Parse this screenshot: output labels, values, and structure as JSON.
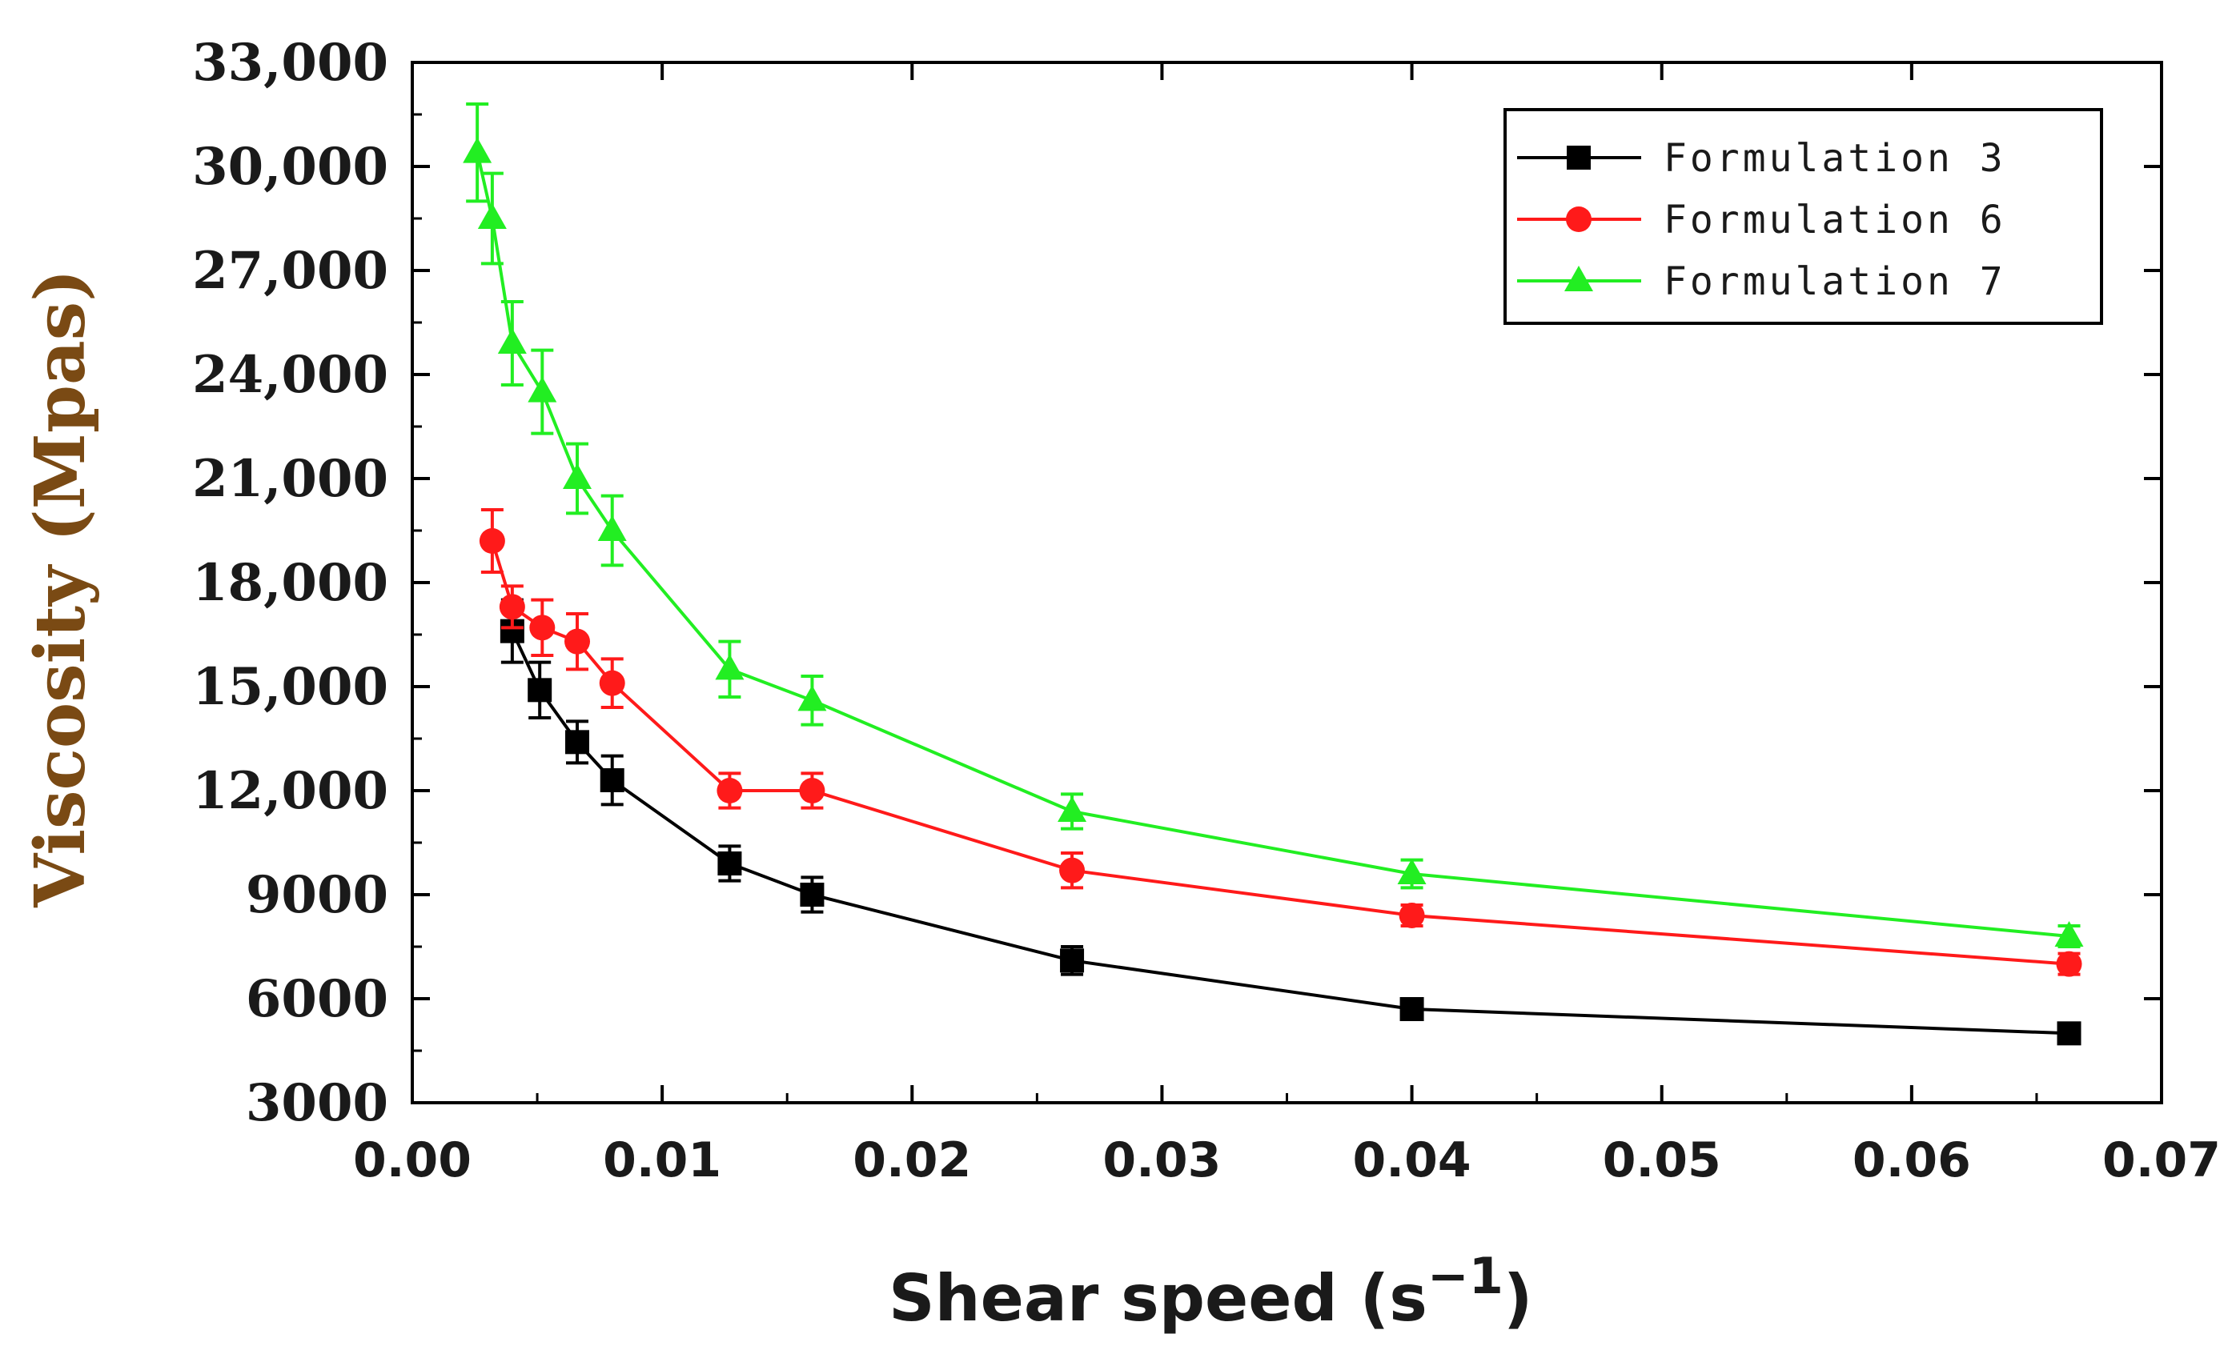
{
  "chart_data": {
    "type": "line",
    "title": "",
    "xlabel": "Shear speed (s",
    "xlabel_superscript": "−1",
    "xlabel_close": ")",
    "ylabel": "Viscosity (Mpas)",
    "xlim": [
      0.0,
      0.07
    ],
    "ylim": [
      3000,
      33000
    ],
    "x_ticks": [
      0.0,
      0.01,
      0.02,
      0.03,
      0.04,
      0.05,
      0.06,
      0.07
    ],
    "x_tick_labels": [
      "0.00",
      "0.01",
      "0.02",
      "0.03",
      "0.04",
      "0.05",
      "0.06",
      "0.07"
    ],
    "y_ticks": [
      3000,
      6000,
      9000,
      12000,
      15000,
      18000,
      21000,
      24000,
      27000,
      30000,
      33000
    ],
    "y_tick_labels": [
      "3000",
      "6000",
      "9000",
      "12,000",
      "15,000",
      "18,000",
      "21,000",
      "24,000",
      "27,000",
      "30,000",
      "33,000"
    ],
    "grid": false,
    "legend_position": "top-right",
    "series": [
      {
        "name": "Formulation 3",
        "color": "#000000",
        "marker": "square",
        "x": [
          0.004,
          0.0051,
          0.0066,
          0.008,
          0.0127,
          0.016,
          0.0264,
          0.04,
          0.0663
        ],
        "y": [
          16600,
          14900,
          13400,
          12300,
          9900,
          9000,
          7100,
          5700,
          5000
        ],
        "err": [
          900,
          800,
          600,
          700,
          500,
          500,
          400,
          200,
          150
        ]
      },
      {
        "name": "Formulation 6",
        "color": "#ff1a1a",
        "marker": "circle",
        "x": [
          0.0032,
          0.004,
          0.0052,
          0.0066,
          0.008,
          0.0127,
          0.016,
          0.0264,
          0.04,
          0.0663
        ],
        "y": [
          19200,
          17300,
          16700,
          16300,
          15100,
          12000,
          12000,
          9700,
          8400,
          7000
        ],
        "err": [
          900,
          600,
          800,
          800,
          700,
          500,
          500,
          500,
          300,
          300
        ]
      },
      {
        "name": "Formulation 7",
        "color": "#22ee22",
        "marker": "triangle",
        "x": [
          0.0026,
          0.0032,
          0.004,
          0.0052,
          0.0066,
          0.008,
          0.0127,
          0.016,
          0.0264,
          0.04,
          0.0663
        ],
        "y": [
          30400,
          28500,
          24900,
          23500,
          21000,
          19500,
          15500,
          14600,
          11400,
          9600,
          7800
        ],
        "err": [
          1400,
          1300,
          1200,
          1200,
          1000,
          1000,
          800,
          700,
          500,
          400,
          300
        ]
      }
    ]
  }
}
